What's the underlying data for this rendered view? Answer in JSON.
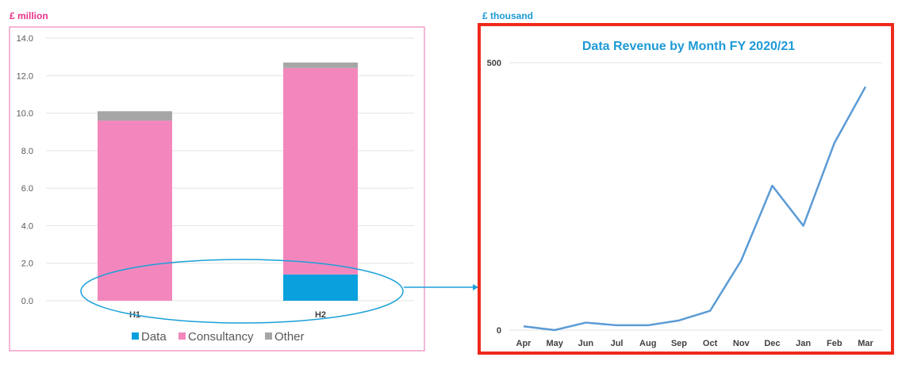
{
  "colors": {
    "data": "#0aa0de",
    "consultancy": "#f387bd",
    "other": "#a6a6a6",
    "left_frame": "#e86fae",
    "left_unit": "#e8338a",
    "right_unit": "#1d9ad6",
    "right_frame": "#ee2a1b",
    "line": "#5b9bd5",
    "ellipse": "#1aa0d8"
  },
  "chart_data": [
    {
      "type": "bar",
      "stacked": true,
      "unit_label": "£ million",
      "categories": [
        "H1",
        "H2"
      ],
      "series": [
        {
          "name": "Data",
          "values": [
            0.0,
            1.4
          ]
        },
        {
          "name": "Consultancy",
          "values": [
            9.6,
            11.0
          ]
        },
        {
          "name": "Other",
          "values": [
            0.5,
            0.3
          ]
        }
      ],
      "ylim": [
        0,
        14
      ],
      "yticks": [
        "14.0",
        "12.0",
        "10.0",
        "8.0",
        "6.0",
        "4.0",
        "2.0",
        "0.0"
      ],
      "ytick_values": [
        14,
        12,
        10,
        8,
        6,
        4,
        2,
        0
      ],
      "grid": true,
      "legend_position": "bottom"
    },
    {
      "type": "line",
      "unit_label": "£ thousand",
      "title": "Data Revenue by Month FY 2020/21",
      "categories": [
        "Apr",
        "May",
        "Jun",
        "Jul",
        "Aug",
        "Sep",
        "Oct",
        "Nov",
        "Dec",
        "Jan",
        "Feb",
        "Mar"
      ],
      "series": [
        {
          "values": [
            7,
            0,
            14,
            9,
            9,
            18,
            36,
            130,
            270,
            195,
            350,
            455
          ]
        }
      ],
      "ylim": [
        0,
        500
      ],
      "yticks": [
        "500",
        "0"
      ],
      "ytick_values": [
        500,
        0
      ],
      "grid": true
    }
  ]
}
